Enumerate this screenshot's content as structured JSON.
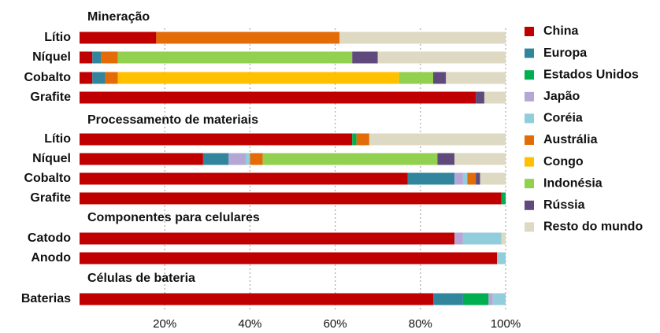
{
  "chart_data": {
    "type": "stacked-bar-h",
    "xlim": [
      0,
      100
    ],
    "xticks": [
      {
        "value": 20,
        "label": "20%"
      },
      {
        "value": 40,
        "label": "40%"
      },
      {
        "value": 60,
        "label": "60%"
      },
      {
        "value": 80,
        "label": "80%"
      },
      {
        "value": 100,
        "label": "100%"
      }
    ],
    "grid": true,
    "legend": "right",
    "series": [
      {
        "name": "China",
        "color": "#c00000"
      },
      {
        "name": "Europa",
        "color": "#31859c"
      },
      {
        "name": "Estados Unidos",
        "color": "#00b050"
      },
      {
        "name": "Japão",
        "color": "#b4a7d6"
      },
      {
        "name": "Coréia",
        "color": "#92cddc"
      },
      {
        "name": "Austrália",
        "color": "#e36c09"
      },
      {
        "name": "Congo",
        "color": "#ffc000"
      },
      {
        "name": "Indonésia",
        "color": "#92d050"
      },
      {
        "name": "Rússia",
        "color": "#604a7b"
      },
      {
        "name": "Resto do mundo",
        "color": "#ddd9c3"
      }
    ],
    "groups": [
      {
        "title": "Mineração",
        "categories": [
          "Lítio",
          "Níquel",
          "Cobalto",
          "Grafite"
        ],
        "series": [
          {
            "values": [
              18,
              3,
              3,
              93
            ]
          },
          {
            "values": [
              0,
              2,
              3,
              0
            ]
          },
          {
            "values": [
              0,
              0,
              0,
              0
            ]
          },
          {
            "values": [
              0,
              0,
              0,
              0
            ]
          },
          {
            "values": [
              0,
              0,
              0,
              0
            ]
          },
          {
            "values": [
              43,
              4,
              3,
              0
            ]
          },
          {
            "values": [
              0,
              0,
              66,
              0
            ]
          },
          {
            "values": [
              0,
              55,
              8,
              0
            ]
          },
          {
            "values": [
              0,
              6,
              3,
              2
            ]
          },
          {
            "values": [
              39,
              30,
              14,
              5
            ]
          }
        ]
      },
      {
        "title": "Processamento de materiais",
        "categories": [
          "Lítio",
          "Níquel",
          "Cobalto",
          "Grafite"
        ],
        "series": [
          {
            "values": [
              64,
              29,
              77,
              99
            ]
          },
          {
            "values": [
              0,
              6,
              11,
              0
            ]
          },
          {
            "values": [
              1,
              0,
              0,
              1
            ]
          },
          {
            "values": [
              0,
              4,
              2,
              0
            ]
          },
          {
            "values": [
              0,
              1,
              1,
              0
            ]
          },
          {
            "values": [
              3,
              3,
              2,
              0
            ]
          },
          {
            "values": [
              0,
              0,
              0,
              0
            ]
          },
          {
            "values": [
              0,
              41,
              0,
              0
            ]
          },
          {
            "values": [
              0,
              4,
              1,
              0
            ]
          },
          {
            "values": [
              32,
              12,
              6,
              0
            ]
          }
        ]
      },
      {
        "title": "Componentes para celulares",
        "categories": [
          "Catodo",
          "Anodo"
        ],
        "series": [
          {
            "values": [
              88,
              98
            ]
          },
          {
            "values": [
              0,
              0
            ]
          },
          {
            "values": [
              0,
              0
            ]
          },
          {
            "values": [
              2,
              0
            ]
          },
          {
            "values": [
              9,
              2
            ]
          },
          {
            "values": [
              0,
              0
            ]
          },
          {
            "values": [
              0,
              0
            ]
          },
          {
            "values": [
              0,
              0
            ]
          },
          {
            "values": [
              0,
              0
            ]
          },
          {
            "values": [
              1,
              0
            ]
          }
        ]
      },
      {
        "title": "Células de bateria",
        "categories": [
          "Baterias"
        ],
        "series": [
          {
            "values": [
              83
            ]
          },
          {
            "values": [
              7
            ]
          },
          {
            "values": [
              6
            ]
          },
          {
            "values": [
              1
            ]
          },
          {
            "values": [
              3
            ]
          },
          {
            "values": [
              0
            ]
          },
          {
            "values": [
              0
            ]
          },
          {
            "values": [
              0
            ]
          },
          {
            "values": [
              0
            ]
          },
          {
            "values": [
              0
            ]
          }
        ]
      }
    ]
  }
}
